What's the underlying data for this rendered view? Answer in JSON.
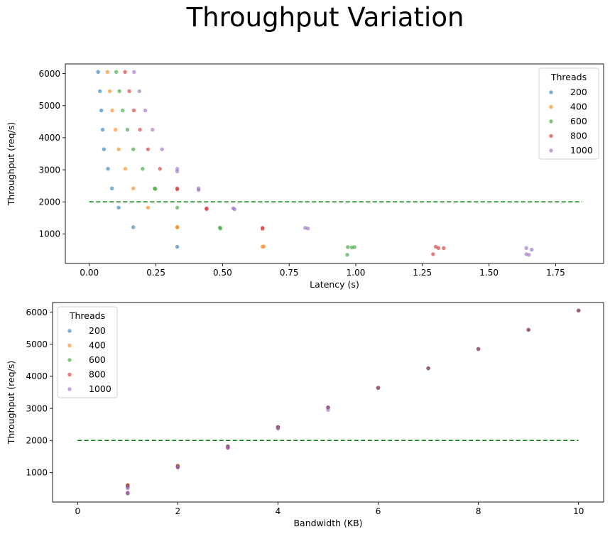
{
  "figure": {
    "title": "Throughput Variation"
  },
  "chart_data": [
    {
      "type": "scatter",
      "xlabel": "Latency (s)",
      "ylabel": "Throughput (req/s)",
      "xlim": [
        -0.09,
        1.93
      ],
      "ylim": [
        80,
        6300
      ],
      "xticks": [
        0.0,
        0.25,
        0.5,
        0.75,
        1.0,
        1.25,
        1.5,
        1.75
      ],
      "xtick_labels": [
        "0.00",
        "0.25",
        "0.50",
        "0.75",
        "1.00",
        "1.25",
        "1.50",
        "1.75"
      ],
      "yticks": [
        1000,
        2000,
        3000,
        4000,
        5000,
        6000
      ],
      "ytick_labels": [
        "1000",
        "2000",
        "3000",
        "4000",
        "5000",
        "6000"
      ],
      "grid": false,
      "legend": {
        "title": "Threads",
        "placement": "top-right"
      },
      "reference_line": {
        "y": 2000,
        "x": [
          0,
          1.85
        ],
        "color": "#008000",
        "style": "dashed"
      },
      "series": [
        {
          "name": "200",
          "color": "#1f77b4",
          "points": [
            [
              0.033,
              6050
            ],
            [
              0.04,
              5450
            ],
            [
              0.045,
              4850
            ],
            [
              0.05,
              4250
            ],
            [
              0.055,
              3640
            ],
            [
              0.07,
              3030
            ],
            [
              0.085,
              2420
            ],
            [
              0.11,
              1820
            ],
            [
              0.165,
              1210
            ],
            [
              0.33,
              600
            ]
          ]
        },
        {
          "name": "400",
          "color": "#ff7f0e",
          "points": [
            [
              0.068,
              6050
            ],
            [
              0.077,
              5450
            ],
            [
              0.086,
              4850
            ],
            [
              0.098,
              4250
            ],
            [
              0.11,
              3640
            ],
            [
              0.135,
              3030
            ],
            [
              0.165,
              2420
            ],
            [
              0.22,
              1820
            ],
            [
              0.33,
              1200
            ],
            [
              0.33,
              1220
            ],
            [
              0.65,
              600
            ],
            [
              0.655,
              610
            ]
          ]
        },
        {
          "name": "600",
          "color": "#2ca02c",
          "points": [
            [
              0.101,
              6050
            ],
            [
              0.113,
              5450
            ],
            [
              0.125,
              4850
            ],
            [
              0.143,
              4250
            ],
            [
              0.165,
              3640
            ],
            [
              0.2,
              3030
            ],
            [
              0.245,
              2420
            ],
            [
              0.248,
              2400
            ],
            [
              0.33,
              1820
            ],
            [
              0.49,
              1200
            ],
            [
              0.492,
              1170
            ],
            [
              0.97,
              590
            ],
            [
              0.985,
              580
            ],
            [
              0.995,
              590
            ],
            [
              0.968,
              350
            ]
          ]
        },
        {
          "name": "800",
          "color": "#d62728",
          "points": [
            [
              0.134,
              6050
            ],
            [
              0.15,
              5450
            ],
            [
              0.167,
              4850
            ],
            [
              0.19,
              4250
            ],
            [
              0.22,
              3640
            ],
            [
              0.265,
              3030
            ],
            [
              0.33,
              2420
            ],
            [
              0.33,
              2390
            ],
            [
              0.44,
              1800
            ],
            [
              0.44,
              1770
            ],
            [
              0.65,
              1190
            ],
            [
              0.65,
              1160
            ],
            [
              1.3,
              600
            ],
            [
              1.31,
              560
            ],
            [
              1.33,
              560
            ],
            [
              1.29,
              370
            ]
          ]
        },
        {
          "name": "1000",
          "color": "#9467bd",
          "points": [
            [
              0.168,
              6050
            ],
            [
              0.188,
              5450
            ],
            [
              0.21,
              4850
            ],
            [
              0.237,
              4250
            ],
            [
              0.273,
              3640
            ],
            [
              0.33,
              3030
            ],
            [
              0.33,
              2950
            ],
            [
              0.41,
              2420
            ],
            [
              0.41,
              2370
            ],
            [
              0.54,
              1800
            ],
            [
              0.545,
              1770
            ],
            [
              0.81,
              1190
            ],
            [
              0.82,
              1170
            ],
            [
              1.64,
              560
            ],
            [
              1.66,
              510
            ],
            [
              1.64,
              370
            ],
            [
              1.65,
              350
            ]
          ]
        }
      ]
    },
    {
      "type": "scatter",
      "xlabel": "Bandwidth (KB)",
      "ylabel": "Throughput (req/s)",
      "xlim": [
        -0.5,
        10.5
      ],
      "ylim": [
        80,
        6300
      ],
      "xticks": [
        0,
        2,
        4,
        6,
        8,
        10
      ],
      "xtick_labels": [
        "0",
        "2",
        "4",
        "6",
        "8",
        "10"
      ],
      "yticks": [
        1000,
        2000,
        3000,
        4000,
        5000,
        6000
      ],
      "ytick_labels": [
        "1000",
        "2000",
        "3000",
        "4000",
        "5000",
        "6000"
      ],
      "grid": false,
      "legend": {
        "title": "Threads",
        "placement": "top-left"
      },
      "reference_line": {
        "y": 2000,
        "x": [
          0,
          10
        ],
        "color": "#008000",
        "style": "dashed"
      },
      "series": [
        {
          "name": "200",
          "color": "#1f77b4",
          "points": [
            [
              1,
              600
            ],
            [
              2,
              1210
            ],
            [
              3,
              1820
            ],
            [
              4,
              2420
            ],
            [
              5,
              3030
            ],
            [
              6,
              3640
            ],
            [
              7,
              4250
            ],
            [
              8,
              4850
            ],
            [
              9,
              5450
            ],
            [
              10,
              6050
            ]
          ]
        },
        {
          "name": "400",
          "color": "#ff7f0e",
          "points": [
            [
              1,
              600
            ],
            [
              1,
              610
            ],
            [
              2,
              1200
            ],
            [
              2,
              1220
            ],
            [
              3,
              1820
            ],
            [
              4,
              2420
            ],
            [
              5,
              3030
            ],
            [
              6,
              3640
            ],
            [
              7,
              4250
            ],
            [
              8,
              4850
            ],
            [
              9,
              5450
            ],
            [
              10,
              6050
            ]
          ]
        },
        {
          "name": "600",
          "color": "#2ca02c",
          "points": [
            [
              1,
              590
            ],
            [
              1,
              580
            ],
            [
              1,
              350
            ],
            [
              2,
              1200
            ],
            [
              2,
              1170
            ],
            [
              3,
              1820
            ],
            [
              4,
              2420
            ],
            [
              4,
              2400
            ],
            [
              5,
              3030
            ],
            [
              6,
              3640
            ],
            [
              7,
              4250
            ],
            [
              8,
              4850
            ],
            [
              9,
              5450
            ],
            [
              10,
              6050
            ]
          ]
        },
        {
          "name": "800",
          "color": "#d62728",
          "points": [
            [
              1,
              600
            ],
            [
              1,
              560
            ],
            [
              1,
              370
            ],
            [
              2,
              1190
            ],
            [
              2,
              1160
            ],
            [
              3,
              1800
            ],
            [
              3,
              1770
            ],
            [
              4,
              2420
            ],
            [
              4,
              2390
            ],
            [
              5,
              3030
            ],
            [
              6,
              3640
            ],
            [
              7,
              4250
            ],
            [
              8,
              4850
            ],
            [
              9,
              5450
            ],
            [
              10,
              6050
            ]
          ]
        },
        {
          "name": "1000",
          "color": "#9467bd",
          "points": [
            [
              1,
              560
            ],
            [
              1,
              510
            ],
            [
              1,
              370
            ],
            [
              1,
              350
            ],
            [
              2,
              1190
            ],
            [
              2,
              1170
            ],
            [
              3,
              1800
            ],
            [
              3,
              1770
            ],
            [
              4,
              2420
            ],
            [
              4,
              2370
            ],
            [
              5,
              3030
            ],
            [
              5,
              2950
            ],
            [
              6,
              3640
            ],
            [
              7,
              4250
            ],
            [
              8,
              4850
            ],
            [
              9,
              5450
            ],
            [
              10,
              6050
            ]
          ]
        }
      ]
    }
  ]
}
